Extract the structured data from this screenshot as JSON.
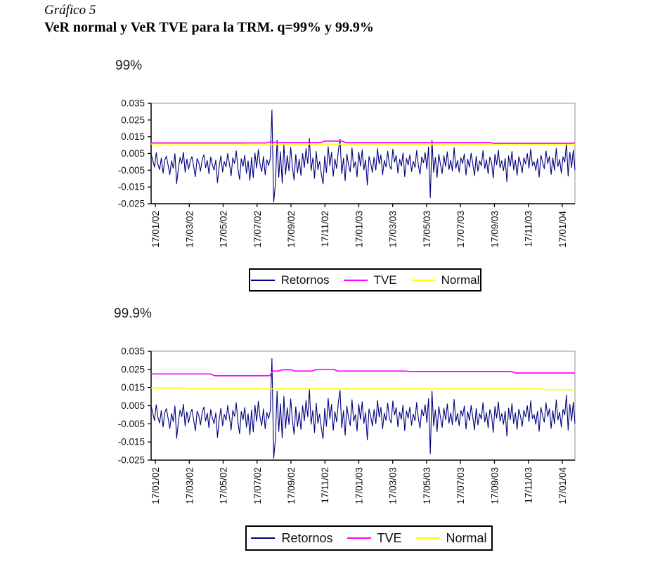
{
  "header": {
    "caption": "Gráfico 5",
    "title": "VeR normal y VeR TVE para la TRM. q=99% y 99.9%"
  },
  "legend": {
    "items": [
      {
        "label": "Retornos",
        "color": "#000080"
      },
      {
        "label": "TVE",
        "color": "#FF00FF"
      },
      {
        "label": "Normal",
        "color": "#FFFF00"
      }
    ]
  },
  "colors": {
    "retornos": "#000080",
    "tve": "#FF00FF",
    "normal": "#FFFF00",
    "plot_border": "#909090",
    "axis": "#000000"
  },
  "shared": {
    "retornos_unit": 0.001,
    "retornos_milli": [
      4.8,
      0.9,
      -3.2,
      5.5,
      -1.4,
      -4.6,
      2.3,
      -6.8,
      1.1,
      3.4,
      -2.1,
      -7.6,
      0.7,
      -3.8,
      4.9,
      -13.0,
      -4.2,
      2.6,
      -1.0,
      5.8,
      -6.2,
      1.7,
      -4.4,
      0.5,
      3.1,
      -2.7,
      -8.9,
      2.0,
      -0.4,
      -5.6,
      1.4,
      4.3,
      -3.5,
      0.8,
      -7.2,
      2.9,
      -1.8,
      -4.9,
      1.0,
      -12.5,
      -2.4,
      3.6,
      -6.1,
      0.2,
      -3.0,
      5.1,
      -1.2,
      -8.4,
      2.5,
      -0.9,
      6.6,
      -4.1,
      -10.5,
      1.9,
      -2.8,
      4.0,
      -6.9,
      0.6,
      -11.0,
      2.7,
      -9.5,
      5.3,
      -3.7,
      7.4,
      -1.6,
      -5.9,
      3.3,
      -7.8,
      1.3,
      -2.2,
      2.1,
      31.0,
      -24.0,
      -13.5,
      13.0,
      -9.2,
      6.1,
      -12.8,
      10.2,
      -7.5,
      3.8,
      -5.4,
      8.7,
      -2.9,
      -10.8,
      4.4,
      -6.6,
      1.6,
      -8.1,
      5.0,
      -3.4,
      7.9,
      -1.1,
      14.0,
      -5.2,
      2.4,
      -9.8,
      6.3,
      -4.7,
      0.3,
      -7.3,
      -13.2,
      3.5,
      -6.4,
      9.1,
      -2.3,
      5.7,
      -8.6,
      1.8,
      -4.0,
      6.9,
      13.5,
      -7.1,
      2.2,
      -11.3,
      4.7,
      -1.7,
      -6.0,
      8.3,
      -3.6,
      0.1,
      -9.0,
      5.9,
      -2.6,
      7.2,
      -4.8,
      1.2,
      -13.8,
      3.2,
      -0.7,
      -6.3,
      2.8,
      -5.0,
      8.0,
      -1.3,
      4.1,
      -7.7,
      0.9,
      -3.1,
      6.4,
      -2.0,
      -4.5,
      7.6,
      -0.2,
      3.9,
      -6.7,
      1.5,
      -2.5,
      5.4,
      -8.8,
      2.1,
      -1.9,
      4.2,
      -5.8,
      0.4,
      -3.3,
      6.8,
      -2.1,
      -7.4,
      3.0,
      -0.5,
      5.6,
      -4.3,
      8.9,
      -21.5,
      13.0,
      -6.2,
      2.6,
      -9.3,
      4.5,
      -1.5,
      -7.0,
      3.7,
      -2.8,
      6.0,
      -4.6,
      1.0,
      -5.5,
      8.5,
      -3.9,
      0.8,
      -6.1,
      2.4,
      -0.9,
      4.8,
      -7.9,
      1.7,
      -3.2,
      5.2,
      -1.4,
      -8.3,
      3.4,
      -5.7,
      0.6,
      -2.4,
      6.7,
      -4.0,
      1.3,
      -7.2,
      2.9,
      -0.3,
      -9.7,
      4.6,
      -1.8,
      7.1,
      -3.5,
      0.7,
      -5.3,
      2.0,
      -11.8,
      3.6,
      -2.7,
      6.2,
      -4.9,
      1.1,
      -8.0,
      3.1,
      -0.8,
      -6.5,
      2.5,
      -1.2,
      5.0,
      -3.8,
      7.7,
      -2.2,
      0.0,
      -5.2,
      1.9,
      -9.1,
      4.0,
      -0.6,
      -4.1,
      6.5,
      -1.0,
      3.3,
      -7.5,
      2.3,
      -5.1,
      8.2,
      -2.9,
      1.4,
      -6.8,
      3.0,
      -0.1,
      11.0,
      -8.5,
      5.8,
      -3.4,
      7.0,
      -5.0
    ]
  },
  "chart_data": [
    {
      "type": "line",
      "title": "99%",
      "ylim": [
        -0.025,
        0.035
      ],
      "y_ticks": [
        0.035,
        0.025,
        0.015,
        0.005,
        -0.005,
        -0.015,
        -0.025
      ],
      "y_tick_labels": [
        "0.035",
        "0.025",
        "0.015",
        "0.005",
        "-0.005",
        "-0.015",
        "-0.025"
      ],
      "x_tick_labels": [
        "17/01/02",
        "17/03/02",
        "17/05/02",
        "17/07/02",
        "17/09/02",
        "17/11/02",
        "17/01/03",
        "17/03/03",
        "17/05/03",
        "17/07/03",
        "17/09/03",
        "17/11/03",
        "17/01/04"
      ],
      "grid": false,
      "legend_position": "bottom",
      "legend": [
        "Retornos",
        "TVE",
        "Normal"
      ],
      "series": [
        {
          "name": "Retornos",
          "color": "#000080",
          "unit": 0.001,
          "values_ref": "shared.retornos_milli"
        },
        {
          "name": "TVE",
          "color": "#FF00FF",
          "points_xy": [
            [
              0,
              0.0113
            ],
            [
              0.27,
              0.0113
            ],
            [
              0.283,
              0.0119
            ],
            [
              0.3,
              0.0115
            ],
            [
              0.4,
              0.0115
            ],
            [
              0.41,
              0.0124
            ],
            [
              0.45,
              0.0124
            ],
            [
              0.46,
              0.0115
            ],
            [
              0.8,
              0.0115
            ],
            [
              0.81,
              0.0111
            ],
            [
              0.985,
              0.0111
            ],
            [
              1,
              0.0113
            ]
          ]
        },
        {
          "name": "Normal",
          "color": "#FFFF00",
          "points_xy": [
            [
              0,
              0.0107
            ],
            [
              0.21,
              0.0107
            ],
            [
              0.225,
              0.0101
            ],
            [
              0.285,
              0.0101
            ],
            [
              0.3,
              0.0106
            ],
            [
              1,
              0.0106
            ]
          ]
        }
      ]
    },
    {
      "type": "line",
      "title": "99.9%",
      "ylim": [
        -0.025,
        0.035
      ],
      "y_ticks": [
        0.035,
        0.025,
        0.015,
        0.005,
        -0.005,
        -0.015,
        -0.025
      ],
      "y_tick_labels": [
        "0.035",
        "0.025",
        "0.015",
        "0.005",
        "-0.005",
        "-0.015",
        "-0.025"
      ],
      "x_tick_labels": [
        "17/01/02",
        "17/03/02",
        "17/05/02",
        "17/07/02",
        "17/09/02",
        "17/11/02",
        "17/01/03",
        "17/03/03",
        "17/05/03",
        "17/07/03",
        "17/09/03",
        "17/11/03",
        "17/01/04"
      ],
      "grid": false,
      "legend_position": "bottom",
      "legend": [
        "Retornos",
        "TVE",
        "Normal"
      ],
      "series": [
        {
          "name": "Retornos",
          "color": "#000080",
          "unit": 0.001,
          "values_ref": "shared.retornos_milli"
        },
        {
          "name": "TVE",
          "color": "#FF00FF",
          "points_xy": [
            [
              0,
              0.0225
            ],
            [
              0.14,
              0.0225
            ],
            [
              0.15,
              0.0215
            ],
            [
              0.28,
              0.0215
            ],
            [
              0.287,
              0.0241
            ],
            [
              0.3,
              0.0241
            ],
            [
              0.31,
              0.0248
            ],
            [
              0.33,
              0.0248
            ],
            [
              0.34,
              0.0241
            ],
            [
              0.38,
              0.0241
            ],
            [
              0.39,
              0.025
            ],
            [
              0.43,
              0.025
            ],
            [
              0.44,
              0.0241
            ],
            [
              0.6,
              0.0241
            ],
            [
              0.61,
              0.0238
            ],
            [
              0.85,
              0.0238
            ],
            [
              0.86,
              0.023
            ],
            [
              1,
              0.023
            ]
          ]
        },
        {
          "name": "Normal",
          "color": "#FFFF00",
          "points_xy": [
            [
              0,
              0.0147
            ],
            [
              0.08,
              0.0147
            ],
            [
              0.09,
              0.0143
            ],
            [
              0.92,
              0.0143
            ],
            [
              0.93,
              0.0138
            ],
            [
              1,
              0.0138
            ]
          ]
        }
      ]
    }
  ]
}
